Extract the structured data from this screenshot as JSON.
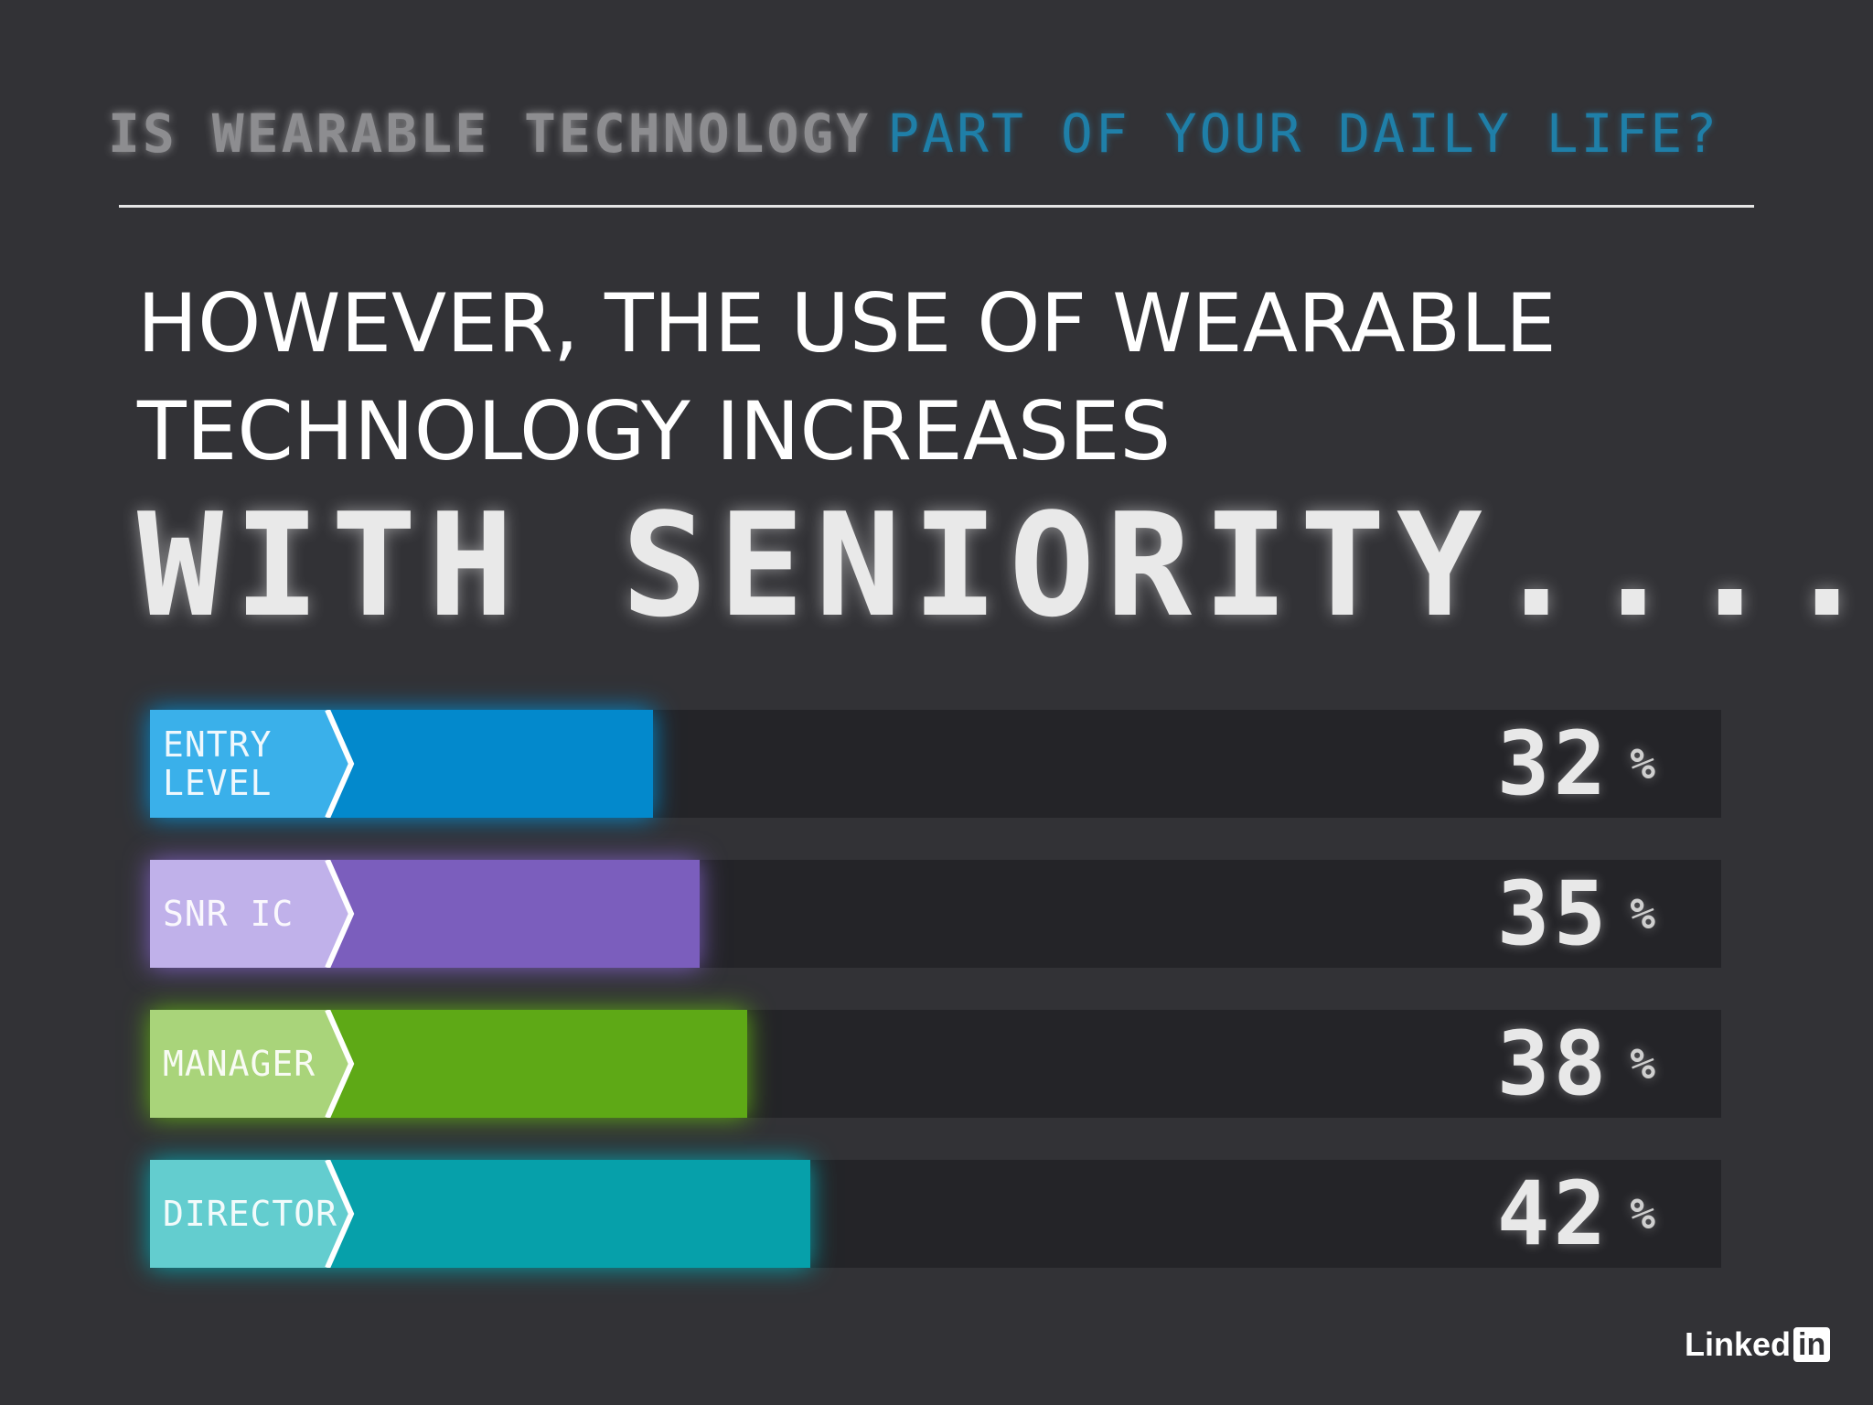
{
  "header": {
    "question_part1": "IS WEARABLE TECHNOLOGY",
    "question_part2": "PART OF YOUR DAILY LIFE?"
  },
  "headline": {
    "line1": "HOWEVER, THE USE OF WEARABLE",
    "line2": "TECHNOLOGY INCREASES",
    "emphasis": "WITH SENIORITY...."
  },
  "chart_data": {
    "type": "bar",
    "orientation": "horizontal",
    "categories": [
      "ENTRY\nLEVEL",
      "SNR IC",
      "MANAGER",
      "DIRECTOR"
    ],
    "values": [
      32,
      35,
      38,
      42
    ],
    "unit": "%",
    "xlim": [
      0,
      100
    ],
    "colors": {
      "tabs": [
        "#3ab0ea",
        "#c0b1ea",
        "#a9d47a",
        "#63cdcf"
      ],
      "fills": [
        "#0389cc",
        "#7b5ebd",
        "#5ea916",
        "#06a0aa"
      ]
    }
  },
  "logo": {
    "text": "Linked",
    "badge": "in"
  }
}
